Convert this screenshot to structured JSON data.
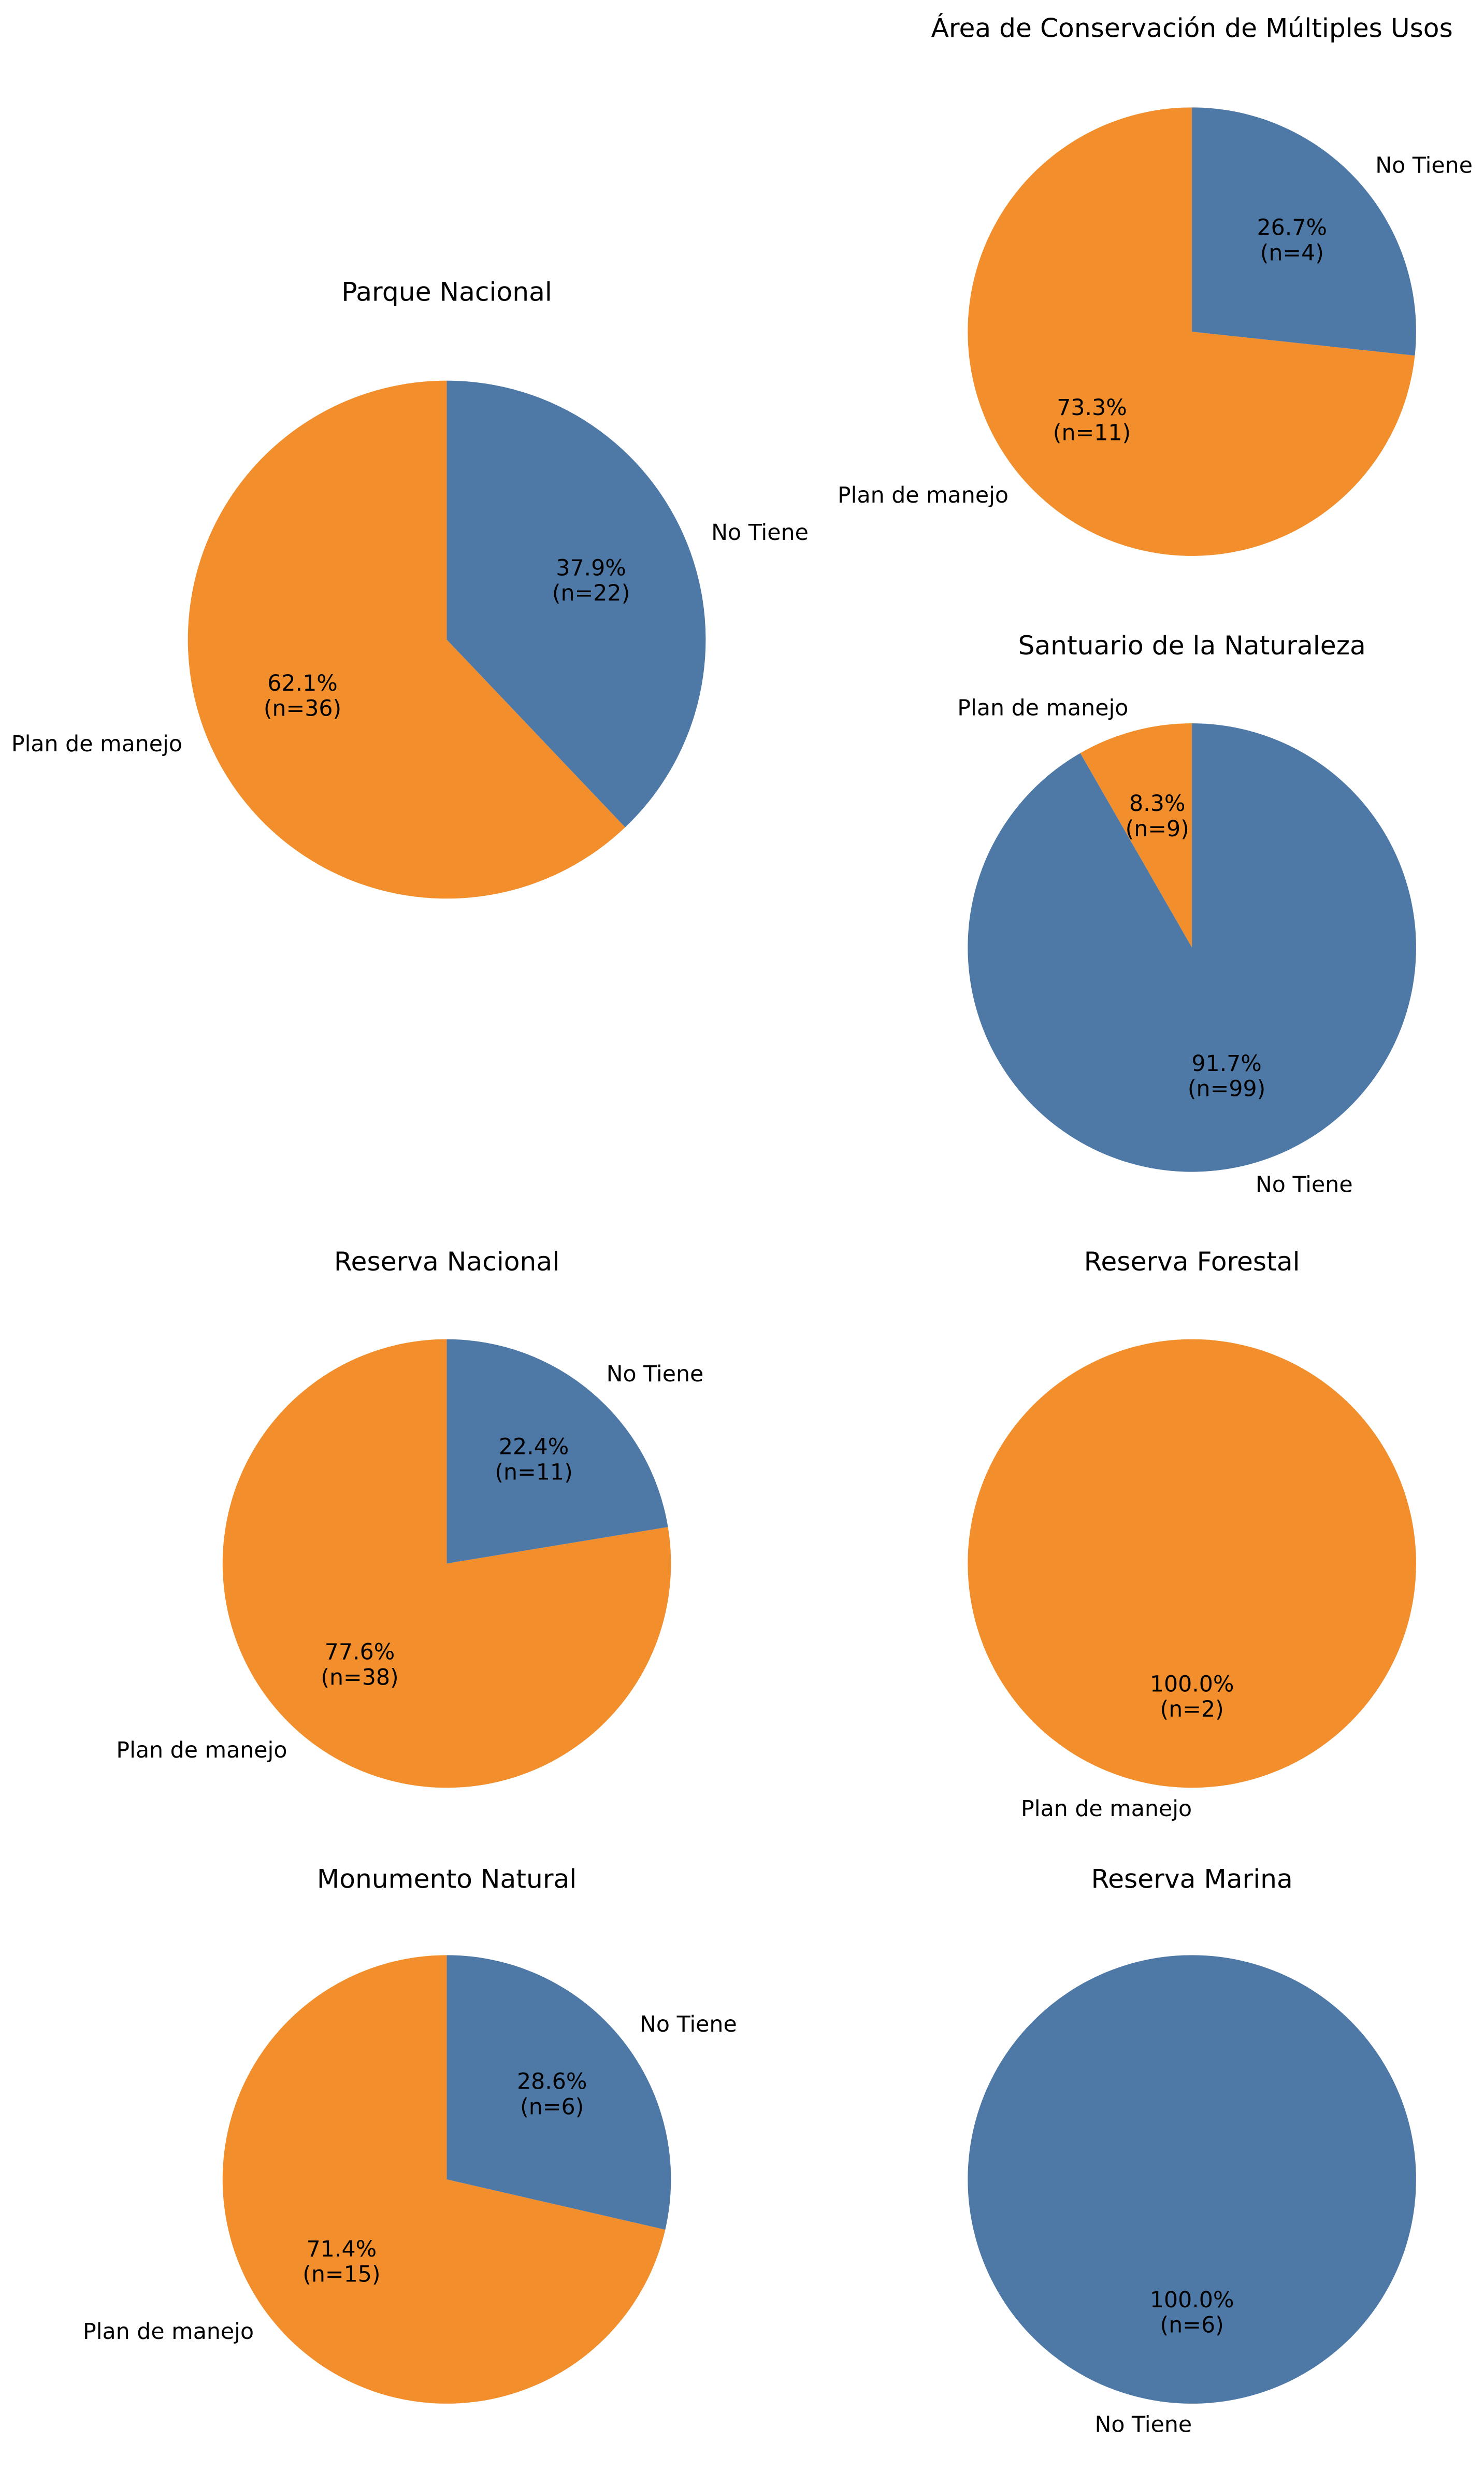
{
  "chart_data": [
    {
      "type": "pie",
      "title": "Parque Nacional",
      "categories": [
        "Plan de manejo",
        "No Tiene"
      ],
      "values": [
        62.1,
        37.9
      ],
      "value_labels": [
        "62.1%",
        "37.9%"
      ],
      "count_labels": [
        "(n=36)",
        "(n=22)"
      ],
      "colors": [
        "#f28e2b",
        "#4e79a7"
      ]
    },
    {
      "type": "pie",
      "title": "Área de Conservación de Múltiples Usos",
      "categories": [
        "Plan de manejo",
        "No Tiene"
      ],
      "values": [
        73.3,
        26.7
      ],
      "value_labels": [
        "73.3%",
        "26.7%"
      ],
      "count_labels": [
        "(n=11)",
        "(n=4)"
      ],
      "colors": [
        "#f28e2b",
        "#4e79a7"
      ]
    },
    {
      "type": "pie",
      "title": "Santuario de la Naturaleza",
      "categories": [
        "Plan de manejo",
        "No Tiene"
      ],
      "values": [
        8.3,
        91.7
      ],
      "value_labels": [
        "8.3%",
        "91.7%"
      ],
      "count_labels": [
        "(n=9)",
        "(n=99)"
      ],
      "colors": [
        "#f28e2b",
        "#4e79a7"
      ]
    },
    {
      "type": "pie",
      "title": "Reserva Nacional",
      "categories": [
        "Plan de manejo",
        "No Tiene"
      ],
      "values": [
        77.6,
        22.4
      ],
      "value_labels": [
        "77.6%",
        "22.4%"
      ],
      "count_labels": [
        "(n=38)",
        "(n=11)"
      ],
      "colors": [
        "#f28e2b",
        "#4e79a7"
      ]
    },
    {
      "type": "pie",
      "title": "Reserva Forestal",
      "categories": [
        "Plan de manejo"
      ],
      "values": [
        100.0
      ],
      "value_labels": [
        "100.0%"
      ],
      "count_labels": [
        "(n=2)"
      ],
      "colors": [
        "#f28e2b"
      ]
    },
    {
      "type": "pie",
      "title": "Monumento Natural",
      "categories": [
        "Plan de manejo",
        "No Tiene"
      ],
      "values": [
        71.4,
        28.6
      ],
      "value_labels": [
        "71.4%",
        "28.6%"
      ],
      "count_labels": [
        "(n=15)",
        "(n=6)"
      ],
      "colors": [
        "#f28e2b",
        "#4e79a7"
      ]
    },
    {
      "type": "pie",
      "title": "Reserva Marina",
      "categories": [
        "No Tiene"
      ],
      "values": [
        100.0
      ],
      "value_labels": [
        "100.0%"
      ],
      "count_labels": [
        "(n=6)"
      ],
      "colors": [
        "#4e79a7"
      ]
    }
  ]
}
